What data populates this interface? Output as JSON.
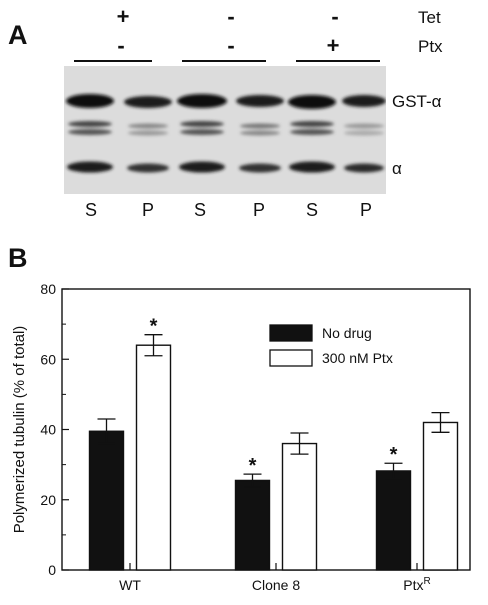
{
  "panel_a": {
    "letter": "A",
    "row_labels": [
      "Tet",
      "Ptx"
    ],
    "tet_signs": [
      "+",
      "-",
      "-"
    ],
    "ptx_signs": [
      "-",
      "-",
      "+"
    ],
    "band_labels": [
      "GST-α",
      "α"
    ],
    "lanes": [
      "S",
      "P",
      "S",
      "P",
      "S",
      "P"
    ]
  },
  "panel_b": {
    "letter": "B"
  },
  "chart_data": {
    "type": "bar",
    "categories": [
      "WT",
      "Clone 8",
      "PtxR"
    ],
    "category_labels": [
      {
        "text": "WT",
        "sup": ""
      },
      {
        "text": "Clone 8",
        "sup": ""
      },
      {
        "text": "Ptx",
        "sup": "R"
      }
    ],
    "series": [
      {
        "name": "No drug",
        "values": [
          39.5,
          25.5,
          28.2
        ],
        "errors": [
          3.5,
          1.8,
          2.2
        ],
        "significant": [
          false,
          true,
          true
        ],
        "color": "#111111"
      },
      {
        "name": "300 nM Ptx",
        "values": [
          64.0,
          36.0,
          42.0
        ],
        "errors": [
          3.0,
          3.0,
          2.8
        ],
        "significant": [
          true,
          false,
          false
        ],
        "color": "#ffffff"
      }
    ],
    "ylabel": "Polymerized tubulin (% of total)",
    "xlabel": "",
    "ylim": [
      0,
      80
    ],
    "yticks": [
      0,
      20,
      40,
      60,
      80
    ],
    "significance_marker": "*",
    "legend_position": "top-right"
  }
}
